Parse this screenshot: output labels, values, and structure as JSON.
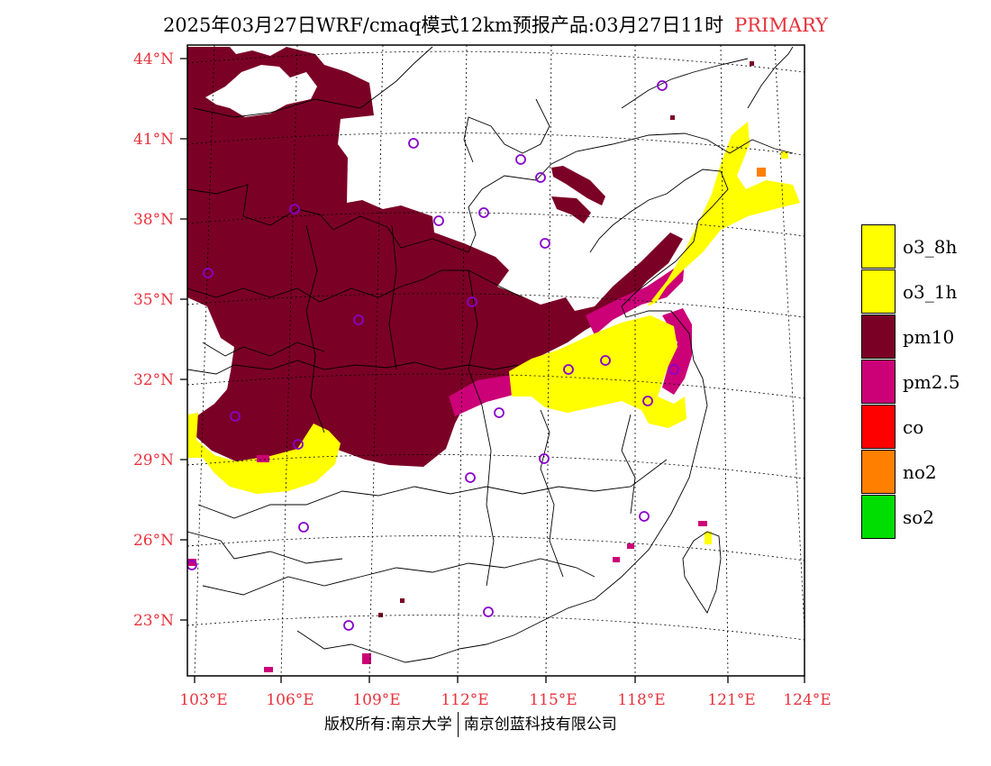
{
  "title": {
    "main": "2025年03月27日WRF/cmaq模式12km预报产品:03月27日11时",
    "tag": "PRIMARY"
  },
  "axes": {
    "lat_labels": [
      "44°N",
      "41°N",
      "38°N",
      "35°N",
      "32°N",
      "29°N",
      "26°N",
      "23°N"
    ],
    "lon_labels": [
      "103°E",
      "106°E",
      "109°E",
      "112°E",
      "115°E",
      "118°E",
      "121°E",
      "124°E"
    ]
  },
  "legend": {
    "items": [
      {
        "label": "o3_8h",
        "color": "#ffff00"
      },
      {
        "label": "o3_1h",
        "color": "#ffff00"
      },
      {
        "label": "pm10",
        "color": "#7b0026"
      },
      {
        "label": "pm2.5",
        "color": "#cc0077"
      },
      {
        "label": "co",
        "color": "#ff0000"
      },
      {
        "label": "no2",
        "color": "#ff7f00"
      },
      {
        "label": "so2",
        "color": "#00dd00"
      }
    ]
  },
  "colors": {
    "axis_label": "#e8323c",
    "station_marker": "#8800cc",
    "pm10": "#7b0026",
    "pm25": "#cc0077",
    "o3": "#ffff00"
  },
  "footer": {
    "left": "版权所有:南京大学",
    "right": "南京创蓝科技有限公司"
  }
}
